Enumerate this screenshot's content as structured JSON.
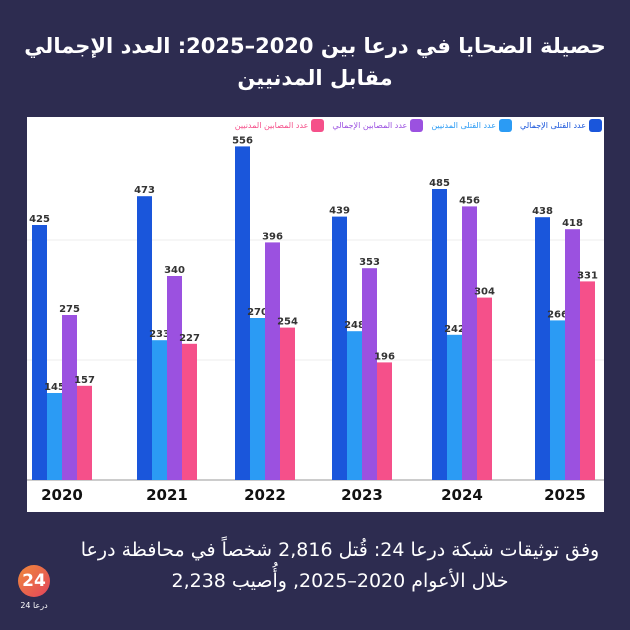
{
  "title": "حصيلة الضحايا في درعا بين 2020–2025: العدد الإجمالي مقابل المدنيين",
  "chart_data": {
    "type": "bar",
    "categories": [
      "2020",
      "2021",
      "2022",
      "2023",
      "2024",
      "2025"
    ],
    "series": [
      {
        "name": "عدد القتلى الإجمالي",
        "color": "#1a56db",
        "values": [
          425,
          473,
          556,
          439,
          485,
          438
        ]
      },
      {
        "name": "عدد القتلى المدنيين",
        "color": "#2b9bf4",
        "values": [
          145,
          233,
          270,
          248,
          242,
          266
        ]
      },
      {
        "name": "عدد المصابين الإجمالي",
        "color": "#9b51e0",
        "values": [
          275,
          340,
          396,
          353,
          456,
          418
        ]
      },
      {
        "name": "عدد المصابين المدنيين",
        "color": "#f5508a",
        "values": [
          157,
          227,
          254,
          196,
          304,
          331
        ]
      }
    ],
    "ylim": [
      0,
      600
    ],
    "grid": true,
    "legend": "top-right"
  },
  "caption": "وفق توثيقات شبكة درعا 24: قُتل 2,816 شخصاً في محافظة درعا خلال الأعوام 2020–2025, وأُصيب 2,238",
  "logo": {
    "mark": "24",
    "text": "درعا 24"
  }
}
